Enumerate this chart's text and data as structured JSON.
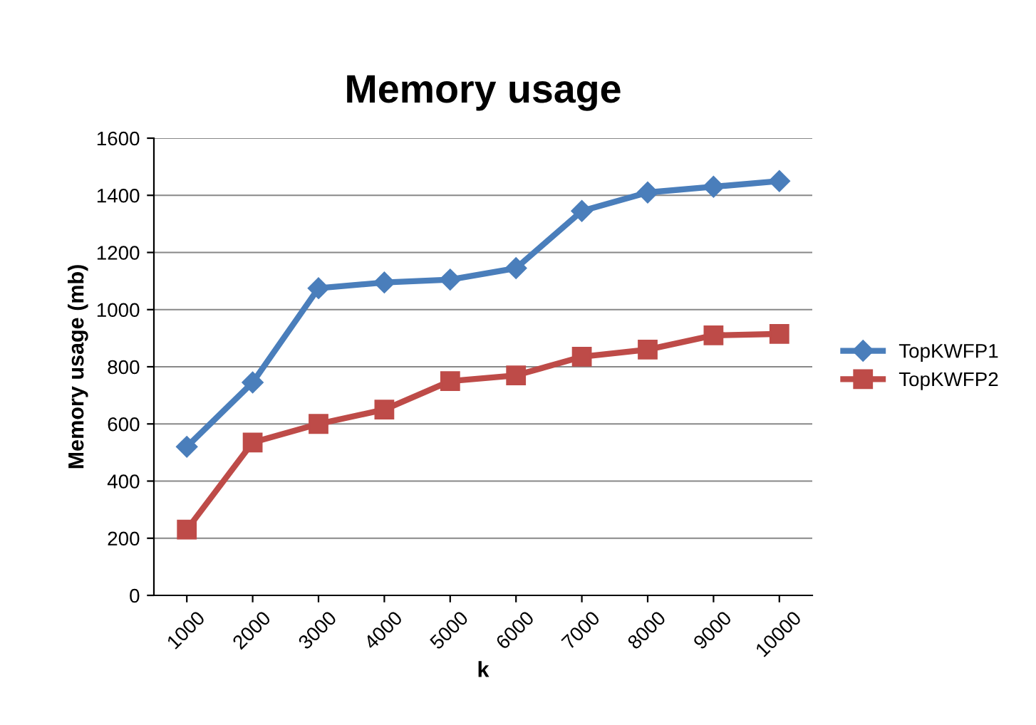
{
  "chart_data": {
    "type": "line",
    "title": "Memory usage",
    "xlabel": "k",
    "ylabel": "Memory usage (mb)",
    "categories": [
      "1000",
      "2000",
      "3000",
      "4000",
      "5000",
      "6000",
      "7000",
      "8000",
      "9000",
      "10000"
    ],
    "series": [
      {
        "name": "TopKWFP1",
        "color": "#4a7ebb",
        "marker": "diamond",
        "values": [
          520,
          745,
          1075,
          1095,
          1105,
          1145,
          1345,
          1410,
          1430,
          1450
        ]
      },
      {
        "name": "TopKWFP2",
        "color": "#be4b48",
        "marker": "square",
        "values": [
          230,
          535,
          600,
          650,
          750,
          770,
          835,
          860,
          910,
          915
        ]
      }
    ],
    "ylim": [
      0,
      1600
    ],
    "yticks": [
      0,
      200,
      400,
      600,
      800,
      1000,
      1200,
      1400,
      1600
    ],
    "grid": "y",
    "legend": "right",
    "line_style": "solid"
  }
}
